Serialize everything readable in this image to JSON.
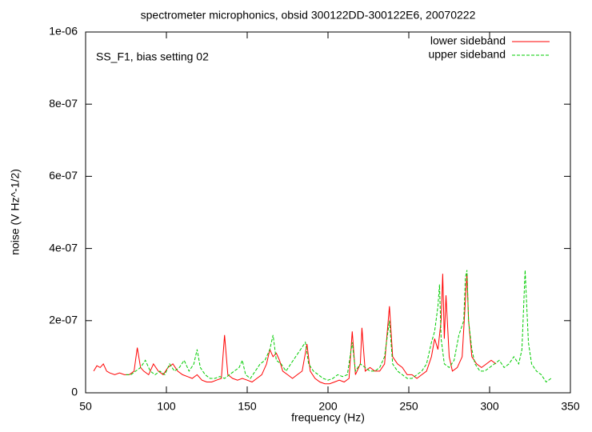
{
  "chart_data": {
    "type": "line",
    "title": "spectrometer microphonics, obsid 300122DD-300122E6, 20070222",
    "annotation": "SS_F1, bias setting 02",
    "xlabel": "frequency (Hz)",
    "ylabel": "noise (V Hz^-1/2)",
    "xlim": [
      50,
      350
    ],
    "xticks": [
      50,
      100,
      150,
      200,
      250,
      300,
      350
    ],
    "ylim": [
      0,
      1e-06
    ],
    "yticks": [
      0,
      {
        "value": 2e-07,
        "label": "2e-07"
      },
      {
        "value": 4e-07,
        "label": "4e-07"
      },
      {
        "value": 6e-07,
        "label": "6e-07"
      },
      {
        "value": 8e-07,
        "label": "8e-07"
      },
      {
        "value": 1e-06,
        "label": "1e-06"
      }
    ],
    "legend": "top-right",
    "series": [
      {
        "name": "lower sideband",
        "color": "#ff0000",
        "dashed": false,
        "x": [
          55,
          57,
          59,
          61,
          63,
          65,
          68,
          71,
          74,
          77,
          80,
          82,
          84,
          86,
          89,
          92,
          95,
          98,
          101,
          104,
          107,
          110,
          113,
          116,
          119,
          122,
          125,
          128,
          131,
          134,
          136,
          138,
          141,
          144,
          147,
          150,
          153,
          156,
          159,
          162,
          164,
          166,
          168,
          170,
          172,
          175,
          178,
          181,
          184,
          187,
          189,
          192,
          195,
          198,
          201,
          204,
          207,
          210,
          213,
          215,
          217,
          220,
          221,
          223,
          226,
          229,
          232,
          235,
          238,
          240,
          243,
          246,
          249,
          252,
          255,
          258,
          261,
          264,
          266,
          268,
          270,
          271,
          272,
          273,
          275,
          277,
          280,
          283,
          286,
          287,
          289,
          292,
          295,
          298,
          301,
          304
        ],
        "values": [
          6e-08,
          7.5e-08,
          7e-08,
          8e-08,
          6e-08,
          5.5e-08,
          5e-08,
          5.5e-08,
          5e-08,
          5e-08,
          6e-08,
          1.25e-07,
          7e-08,
          6e-08,
          5e-08,
          8e-08,
          6e-08,
          5e-08,
          7e-08,
          8e-08,
          6e-08,
          5e-08,
          4.5e-08,
          4e-08,
          5e-08,
          3.5e-08,
          3e-08,
          3e-08,
          3.5e-08,
          4e-08,
          1.6e-07,
          5e-08,
          4e-08,
          3.5e-08,
          4e-08,
          3.5e-08,
          3e-08,
          4e-08,
          5e-08,
          8e-08,
          1.2e-07,
          1e-07,
          1.1e-07,
          9e-08,
          6e-08,
          5e-08,
          4e-08,
          5e-08,
          6e-08,
          1.35e-07,
          6e-08,
          4e-08,
          3e-08,
          2.5e-08,
          2.5e-08,
          3e-08,
          3.5e-08,
          3e-08,
          4e-08,
          1.7e-07,
          5e-08,
          8e-08,
          1.8e-07,
          6e-08,
          7e-08,
          6e-08,
          6e-08,
          8e-08,
          2.4e-07,
          1e-07,
          8e-08,
          7e-08,
          5e-08,
          5e-08,
          4e-08,
          5e-08,
          6e-08,
          1e-07,
          1.5e-07,
          1.2e-07,
          2e-07,
          3.3e-07,
          1.5e-07,
          2.7e-07,
          1e-07,
          6e-08,
          7e-08,
          1e-07,
          3.3e-07,
          2e-07,
          1e-07,
          8e-08,
          7e-08,
          8e-08,
          9e-08,
          8e-08
        ]
      },
      {
        "name": "upper sideband",
        "color": "#00cc00",
        "dashed": true,
        "x": [
          75,
          78,
          81,
          84,
          87,
          90,
          93,
          96,
          99,
          102,
          105,
          108,
          111,
          114,
          117,
          119,
          121,
          124,
          127,
          130,
          133,
          136,
          139,
          142,
          145,
          147,
          149,
          152,
          155,
          158,
          161,
          164,
          166,
          168,
          171,
          174,
          177,
          180,
          183,
          186,
          188,
          191,
          194,
          197,
          200,
          203,
          206,
          209,
          212,
          215,
          217,
          220,
          223,
          226,
          229,
          232,
          235,
          238,
          240,
          243,
          246,
          249,
          252,
          255,
          258,
          261,
          264,
          266,
          268,
          269,
          270,
          272,
          275,
          278,
          281,
          284,
          285,
          286,
          287,
          289,
          291,
          294,
          297,
          300,
          303,
          306,
          309,
          312,
          315,
          318,
          320,
          322,
          324,
          326,
          329,
          332,
          335,
          338
        ],
        "values": [
          5e-08,
          5e-08,
          6e-08,
          7e-08,
          9e-08,
          6e-08,
          5e-08,
          6e-08,
          5e-08,
          8e-08,
          6e-08,
          7e-08,
          9e-08,
          6e-08,
          8e-08,
          1.2e-07,
          7e-08,
          5e-08,
          4e-08,
          4e-08,
          4.5e-08,
          4e-08,
          5e-08,
          6e-08,
          7e-08,
          9e-08,
          5e-08,
          4e-08,
          6e-08,
          8e-08,
          9e-08,
          1.2e-07,
          1.6e-07,
          9e-08,
          8e-08,
          6e-08,
          8e-08,
          1e-07,
          1.2e-07,
          1.4e-07,
          8e-08,
          6e-08,
          5e-08,
          4e-08,
          3.5e-08,
          4e-08,
          5e-08,
          4.5e-08,
          5e-08,
          1.4e-07,
          6e-08,
          8e-08,
          7e-08,
          6e-08,
          6e-08,
          7e-08,
          1e-07,
          2e-07,
          8e-08,
          6e-08,
          5e-08,
          4e-08,
          4e-08,
          5e-08,
          6e-08,
          8e-08,
          1.4e-07,
          1.7e-07,
          2.4e-07,
          3e-07,
          1.5e-07,
          8e-08,
          7e-08,
          9e-08,
          1.6e-07,
          2e-07,
          3.2e-07,
          3.4e-07,
          2e-07,
          1.2e-07,
          8e-08,
          6e-08,
          6e-08,
          7e-08,
          8e-08,
          9e-08,
          7e-08,
          8e-08,
          1e-07,
          8e-08,
          1.2e-07,
          3.4e-07,
          1.4e-07,
          8e-08,
          6e-08,
          5e-08,
          3e-08,
          4e-08
        ]
      }
    ]
  }
}
